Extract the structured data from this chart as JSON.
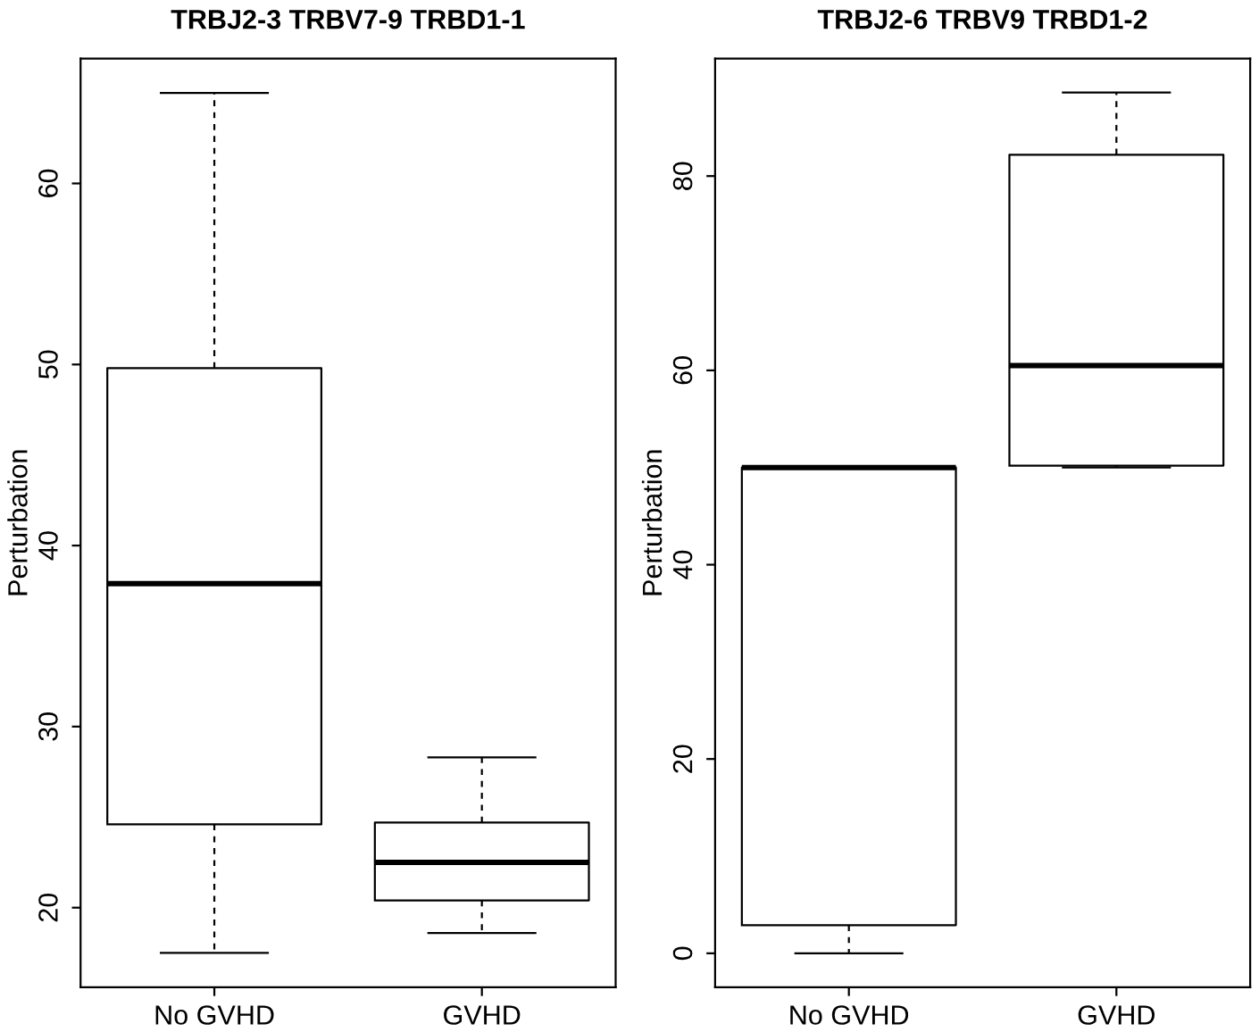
{
  "chart_data": [
    {
      "type": "box",
      "title": "TRBJ2-3 TRBV7-9 TRBD1-1",
      "ylabel": "Perturbation",
      "categories": [
        "No GVHD",
        "GVHD"
      ],
      "boxes": [
        {
          "low": 17.5,
          "q1": 24.6,
          "median": 37.9,
          "q3": 49.8,
          "high": 65.0
        },
        {
          "low": 18.6,
          "q1": 20.4,
          "median": 22.5,
          "q3": 24.7,
          "high": 28.3
        }
      ],
      "ylim": [
        15.6,
        66.9
      ],
      "yticks": [
        20,
        30,
        40,
        50,
        60
      ]
    },
    {
      "type": "box",
      "title": "TRBJ2-6 TRBV9 TRBD1-2",
      "ylabel": "Perturbation",
      "categories": [
        "No GVHD",
        "GVHD"
      ],
      "boxes": [
        {
          "low": 0,
          "q1": 2.9,
          "median": 50,
          "q3": 50,
          "high": 50
        },
        {
          "low": 50,
          "q1": 50.2,
          "median": 60.5,
          "q3": 82.2,
          "high": 88.6
        }
      ],
      "ylim": [
        -3.5,
        92.1
      ],
      "yticks": [
        0,
        20,
        40,
        60,
        80
      ]
    }
  ]
}
